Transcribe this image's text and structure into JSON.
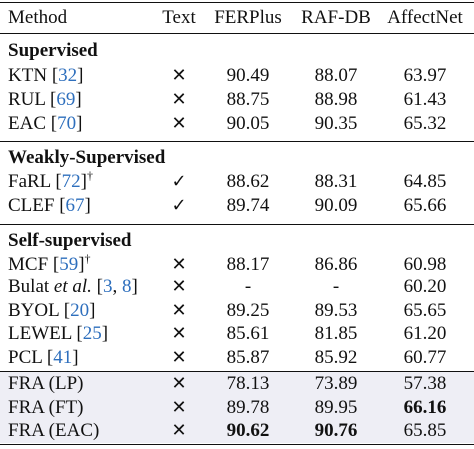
{
  "header": {
    "method": "Method",
    "text": "Text",
    "ferplus": "FERPlus",
    "rafdb": "RAF-DB",
    "affectnet": "AffectNet"
  },
  "sections": {
    "supervised": "Supervised",
    "weakly": "Weakly-Supervised",
    "self": "Self-supervised"
  },
  "rows": [
    {
      "name": "KTN",
      "pre": " [",
      "cite": "32",
      "post": "]",
      "dagger": "",
      "text": "✕",
      "fer": "90.49",
      "raf": "88.07",
      "aff": "63.97"
    },
    {
      "name": "RUL",
      "pre": " [",
      "cite": "69",
      "post": "]",
      "dagger": "",
      "text": "✕",
      "fer": "88.75",
      "raf": "88.98",
      "aff": "61.43"
    },
    {
      "name": "EAC",
      "pre": " [",
      "cite": "70",
      "post": "]",
      "dagger": "",
      "text": "✕",
      "fer": "90.05",
      "raf": "90.35",
      "aff": "65.32"
    },
    {
      "name": "FaRL",
      "pre": " [",
      "cite": "72",
      "post": "]",
      "dagger": "†",
      "text": "✓",
      "fer": "88.62",
      "raf": "88.31",
      "aff": "64.85"
    },
    {
      "name": "CLEF",
      "pre": " [",
      "cite": "67",
      "post": "]",
      "dagger": "",
      "text": "✓",
      "fer": "89.74",
      "raf": "90.09",
      "aff": "65.66"
    },
    {
      "name": "MCF",
      "pre": " [",
      "cite": "59",
      "post": "]",
      "dagger": "†",
      "text": "✕",
      "fer": "88.17",
      "raf": "86.86",
      "aff": "60.98"
    },
    {
      "name": "BYOL",
      "pre": " [",
      "cite": "20",
      "post": "]",
      "dagger": "",
      "text": "✕",
      "fer": "89.25",
      "raf": "89.53",
      "aff": "65.65"
    },
    {
      "name": "LEWEL",
      "pre": " [",
      "cite": "25",
      "post": "]",
      "dagger": "",
      "text": "✕",
      "fer": "85.61",
      "raf": "81.85",
      "aff": "61.20"
    },
    {
      "name": "PCL",
      "pre": " [",
      "cite": "41",
      "post": "]",
      "dagger": "",
      "text": "✕",
      "fer": "85.87",
      "raf": "85.92",
      "aff": "60.77"
    },
    {
      "name": "FRA (LP)",
      "text": "✕",
      "fer": "78.13",
      "raf": "73.89",
      "aff": "57.38"
    },
    {
      "name": "FRA (FT)",
      "text": "✕",
      "fer": "89.78",
      "raf": "89.95",
      "aff": "66.16"
    },
    {
      "name": "FRA (EAC)",
      "text": "✕",
      "fer": "90.62",
      "raf": "90.76",
      "aff": "65.85"
    }
  ],
  "bulat": {
    "name": "Bulat",
    "etal": "et al.",
    "pre": " [",
    "cite1": "3",
    "sep": ", ",
    "cite2": "8",
    "post": "]",
    "text": "✕",
    "fer": "-",
    "raf": "-",
    "aff": "60.20"
  }
}
